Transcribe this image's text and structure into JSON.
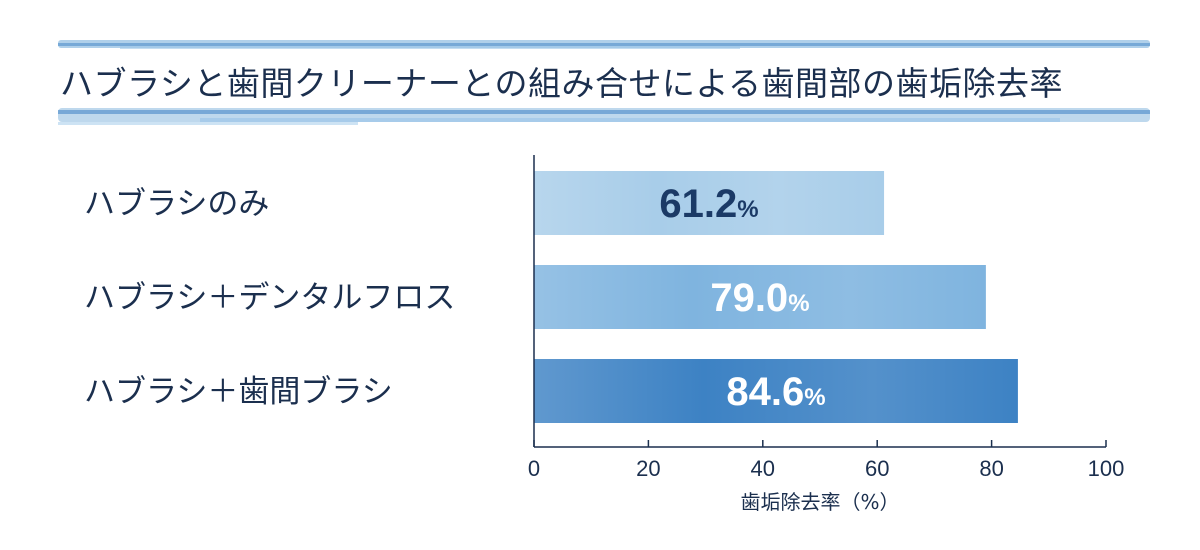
{
  "chart_data": {
    "type": "bar",
    "orientation": "horizontal",
    "title": "ハブラシと歯間クリーナーとの組み合せによる歯間部の歯垢除去率",
    "categories": [
      "ハブラシのみ",
      "ハブラシ＋デンタルフロス",
      "ハブラシ＋歯間ブラシ"
    ],
    "values": [
      61.2,
      79.0,
      84.6
    ],
    "value_labels": [
      "61.2",
      "79.0",
      "84.6"
    ],
    "value_unit": "%",
    "bar_colors": [
      "#a8cde9",
      "#7fb4df",
      "#3d82c4"
    ],
    "value_label_colors": [
      "#1b3a66",
      "#ffffff",
      "#ffffff"
    ],
    "xlabel": "歯垢除去率（%）",
    "xlim": [
      0,
      100
    ],
    "xticks": [
      0,
      20,
      40,
      60,
      80,
      100
    ],
    "grid": false,
    "legend": "none"
  },
  "colors": {
    "text": "#1b2f4e",
    "axis": "#1b2f4e",
    "title_band": "#6fa9d8"
  }
}
